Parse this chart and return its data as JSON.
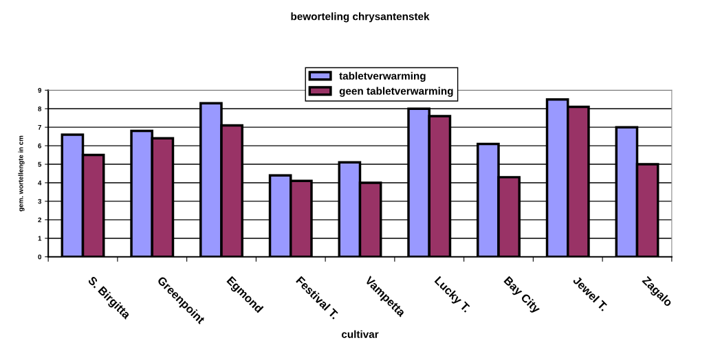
{
  "chart_data": {
    "type": "bar",
    "title": "beworteling chrysantenstek",
    "xlabel": "cultivar",
    "ylabel": "gem. wortellengte in cm",
    "categories": [
      "S. Birgitta",
      "Greenpoint",
      "Egmond",
      "Festival T.",
      "Vampetta",
      "Lucky T.",
      "Bay City",
      "Jewel T.",
      "Zagalo"
    ],
    "series": [
      {
        "name": "tabletverwarming",
        "color": "#9999ff",
        "values": [
          6.6,
          6.8,
          8.3,
          4.4,
          5.1,
          8.0,
          6.1,
          8.5,
          7.0
        ]
      },
      {
        "name": "geen tabletverwarming",
        "color": "#993366",
        "values": [
          5.5,
          6.4,
          7.1,
          4.1,
          4.0,
          7.6,
          4.3,
          8.1,
          5.0
        ]
      }
    ],
    "ylim": [
      0,
      9
    ],
    "yticks": [
      0,
      1,
      2,
      3,
      4,
      5,
      6,
      7,
      8,
      9
    ],
    "grid": "y",
    "legend": "top"
  }
}
